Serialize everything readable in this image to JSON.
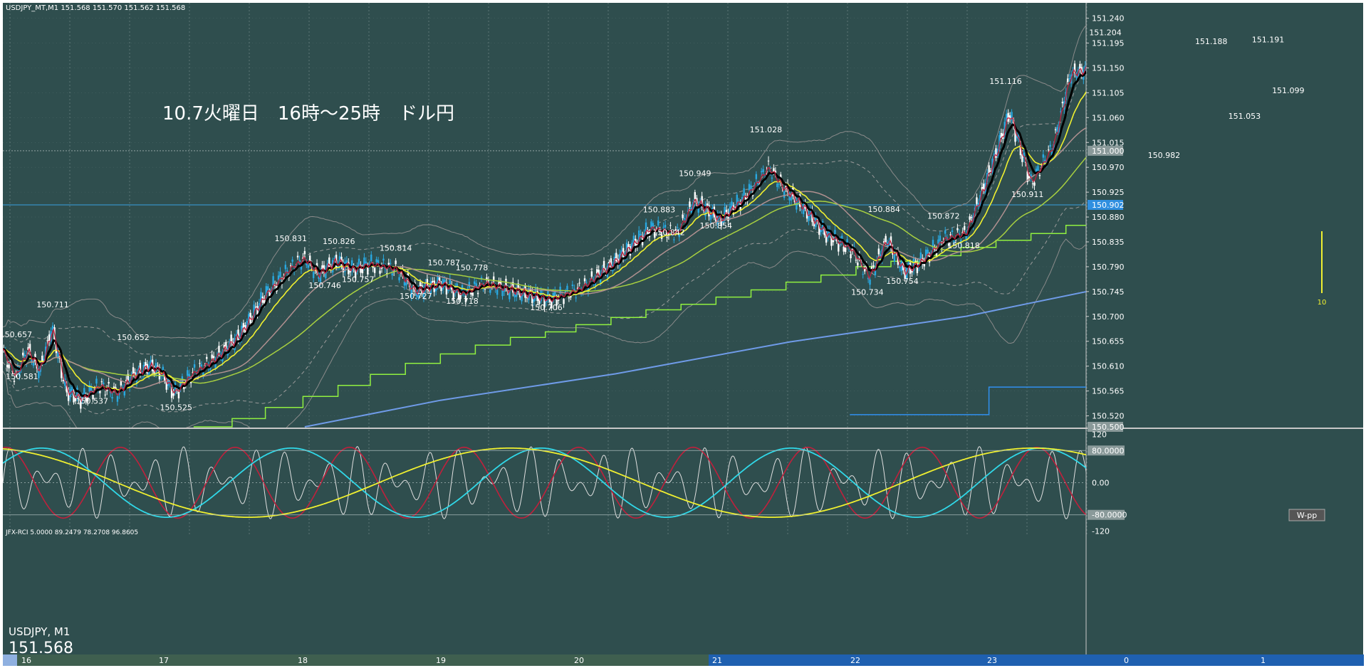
{
  "window": {
    "symbol_info": "USDJPY_MT,M1  151.568 151.570 151.562 151.568",
    "annotation": "10.7火曜日　16時～25時　ドル円",
    "wpp_label": "W-pp",
    "rci_label": "JFX-RCI 5.0000 89.2479 78.2708 96.8605",
    "symbol_tag": "USDJPY, M1",
    "last_price": "151.568",
    "marker_label": "10"
  },
  "colors": {
    "background": "#2f4e4e",
    "bull_candle": "#29a8e0",
    "bear_candle": "#ffffff",
    "ma_fast": "#c0203c",
    "ma_black": "#000000",
    "ma_yellow": "#f0f030",
    "ma_green": "#a8d040",
    "ma_brown": "#b09090",
    "ma_blue": "#6f9be8",
    "pivot_green": "#90f040",
    "pivot_blue": "#3090f0",
    "rci_white": "#e0e0e0",
    "rci_red": "#c0203c",
    "rci_cyan": "#30d8e8",
    "rci_yellow": "#f0f030"
  },
  "chart_data": {
    "type": "candlestick",
    "x_tick_labels": [
      "16",
      "17",
      "18",
      "19",
      "20",
      "21",
      "22",
      "23",
      "0",
      "1"
    ],
    "y_tick_labels": [
      "151.240",
      "151.195",
      "151.150",
      "151.105",
      "151.060",
      "151.015",
      "150.970",
      "150.925",
      "150.880",
      "150.835",
      "150.790",
      "150.745",
      "150.700",
      "150.655",
      "150.610",
      "150.565",
      "150.520"
    ],
    "ylim": [
      150.5,
      151.255
    ],
    "price_tags": [
      {
        "label": "151.000",
        "value": 151.0,
        "style": "grey"
      },
      {
        "label": "150.902",
        "value": 150.902,
        "style": "blue"
      },
      {
        "label": "150.500",
        "value": 150.5,
        "style": "grey"
      }
    ],
    "hline_value": 150.902,
    "anchors": [
      {
        "x": 0,
        "y": 150.635
      },
      {
        "x": 14,
        "y": 150.59
      },
      {
        "x": 28,
        "y": 150.64
      },
      {
        "x": 42,
        "y": 150.6
      },
      {
        "x": 56,
        "y": 150.68
      },
      {
        "x": 72,
        "y": 150.565
      },
      {
        "x": 90,
        "y": 150.55
      },
      {
        "x": 110,
        "y": 150.575
      },
      {
        "x": 130,
        "y": 150.56
      },
      {
        "x": 150,
        "y": 150.595
      },
      {
        "x": 168,
        "y": 150.61
      },
      {
        "x": 180,
        "y": 150.6
      },
      {
        "x": 196,
        "y": 150.56
      },
      {
        "x": 215,
        "y": 150.595
      },
      {
        "x": 240,
        "y": 150.62
      },
      {
        "x": 270,
        "y": 150.665
      },
      {
        "x": 300,
        "y": 150.74
      },
      {
        "x": 330,
        "y": 150.79
      },
      {
        "x": 345,
        "y": 150.805
      },
      {
        "x": 360,
        "y": 150.775
      },
      {
        "x": 380,
        "y": 150.8
      },
      {
        "x": 400,
        "y": 150.785
      },
      {
        "x": 420,
        "y": 150.795
      },
      {
        "x": 450,
        "y": 150.785
      },
      {
        "x": 470,
        "y": 150.745
      },
      {
        "x": 500,
        "y": 150.76
      },
      {
        "x": 525,
        "y": 150.74
      },
      {
        "x": 550,
        "y": 150.76
      },
      {
        "x": 600,
        "y": 150.74
      },
      {
        "x": 625,
        "y": 150.73
      },
      {
        "x": 660,
        "y": 150.75
      },
      {
        "x": 700,
        "y": 150.8
      },
      {
        "x": 740,
        "y": 150.86
      },
      {
        "x": 770,
        "y": 150.85
      },
      {
        "x": 790,
        "y": 150.91
      },
      {
        "x": 820,
        "y": 150.875
      },
      {
        "x": 850,
        "y": 150.92
      },
      {
        "x": 875,
        "y": 150.97
      },
      {
        "x": 890,
        "y": 150.935
      },
      {
        "x": 910,
        "y": 150.905
      },
      {
        "x": 940,
        "y": 150.85
      },
      {
        "x": 970,
        "y": 150.82
      },
      {
        "x": 990,
        "y": 150.77
      },
      {
        "x": 1010,
        "y": 150.84
      },
      {
        "x": 1030,
        "y": 150.78
      },
      {
        "x": 1050,
        "y": 150.8
      },
      {
        "x": 1075,
        "y": 150.84
      },
      {
        "x": 1100,
        "y": 150.85
      },
      {
        "x": 1120,
        "y": 150.93
      },
      {
        "x": 1140,
        "y": 151.02
      },
      {
        "x": 1150,
        "y": 151.07
      },
      {
        "x": 1175,
        "y": 150.94
      },
      {
        "x": 1200,
        "y": 151.01
      },
      {
        "x": 1220,
        "y": 151.14
      },
      {
        "x": 1250,
        "y": 151.15
      },
      {
        "x": 1275,
        "y": 151.165
      },
      {
        "x": 1300,
        "y": 151.14
      },
      {
        "x": 1315,
        "y": 151.05
      },
      {
        "x": 1330,
        "y": 151.0
      },
      {
        "x": 1345,
        "y": 151.06
      },
      {
        "x": 1370,
        "y": 151.15
      },
      {
        "x": 1395,
        "y": 151.14
      },
      {
        "x": 1415,
        "y": 151.07
      },
      {
        "x": 1440,
        "y": 151.13
      },
      {
        "x": 1465,
        "y": 151.1
      },
      {
        "x": 1490,
        "y": 151.16
      },
      {
        "x": 1520,
        "y": 151.22
      }
    ],
    "peaks": [
      {
        "label": "150.657",
        "x": 15,
        "value": 150.657
      },
      {
        "label": "150.581",
        "x": 22,
        "value": 150.581
      },
      {
        "label": "150.711",
        "x": 57,
        "value": 150.711
      },
      {
        "label": "150.537",
        "x": 102,
        "value": 150.537
      },
      {
        "label": "150.652",
        "x": 149,
        "value": 150.652
      },
      {
        "label": "150.525",
        "x": 198,
        "value": 150.525
      },
      {
        "label": "150.831",
        "x": 329,
        "value": 150.831
      },
      {
        "label": "150.746",
        "x": 368,
        "value": 150.746
      },
      {
        "label": "150.826",
        "x": 384,
        "value": 150.826
      },
      {
        "label": "150.757",
        "x": 406,
        "value": 150.757
      },
      {
        "label": "150.814",
        "x": 449,
        "value": 150.814
      },
      {
        "label": "150.727",
        "x": 472,
        "value": 150.727
      },
      {
        "label": "150.787",
        "x": 504,
        "value": 150.787
      },
      {
        "label": "150.778",
        "x": 536,
        "value": 150.778
      },
      {
        "label": "150.718",
        "x": 525,
        "value": 150.718
      },
      {
        "label": "150.706",
        "x": 621,
        "value": 150.706
      },
      {
        "label": "150.883",
        "x": 750,
        "value": 150.883
      },
      {
        "label": "150.842",
        "x": 761,
        "value": 150.842
      },
      {
        "label": "150.949",
        "x": 791,
        "value": 150.949
      },
      {
        "label": "150.854",
        "x": 815,
        "value": 150.854
      },
      {
        "label": "151.028",
        "x": 872,
        "value": 151.028
      },
      {
        "label": "150.884",
        "x": 1007,
        "value": 150.884
      },
      {
        "label": "150.734",
        "x": 988,
        "value": 150.734
      },
      {
        "label": "150.754",
        "x": 1028,
        "value": 150.754
      },
      {
        "label": "150.872",
        "x": 1075,
        "value": 150.872
      },
      {
        "label": "150.818",
        "x": 1098,
        "value": 150.818
      },
      {
        "label": "151.116",
        "x": 1146,
        "value": 151.116
      },
      {
        "label": "150.911",
        "x": 1171,
        "value": 150.911
      },
      {
        "label": "151.204",
        "x": 1260,
        "value": 151.204
      },
      {
        "label": "150.982",
        "x": 1327,
        "value": 150.982
      },
      {
        "label": "151.188",
        "x": 1381,
        "value": 151.188
      },
      {
        "label": "151.053",
        "x": 1419,
        "value": 151.053
      },
      {
        "label": "151.191",
        "x": 1446,
        "value": 151.191
      },
      {
        "label": "151.099",
        "x": 1469,
        "value": 151.099
      }
    ],
    "pivot_green_steps": [
      {
        "x0": 218,
        "x1": 262,
        "y": 150.5
      },
      {
        "x0": 262,
        "x1": 300,
        "y": 150.515
      },
      {
        "x0": 300,
        "x1": 343,
        "y": 150.535
      },
      {
        "x0": 343,
        "x1": 383,
        "y": 150.555
      },
      {
        "x0": 383,
        "x1": 420,
        "y": 150.575
      },
      {
        "x0": 420,
        "x1": 460,
        "y": 150.595
      },
      {
        "x0": 460,
        "x1": 500,
        "y": 150.615
      },
      {
        "x0": 500,
        "x1": 540,
        "y": 150.632
      },
      {
        "x0": 540,
        "x1": 580,
        "y": 150.648
      },
      {
        "x0": 580,
        "x1": 620,
        "y": 150.662
      },
      {
        "x0": 620,
        "x1": 655,
        "y": 150.672
      },
      {
        "x0": 655,
        "x1": 695,
        "y": 150.685
      },
      {
        "x0": 695,
        "x1": 735,
        "y": 150.698
      },
      {
        "x0": 735,
        "x1": 775,
        "y": 150.712
      },
      {
        "x0": 775,
        "x1": 815,
        "y": 150.722
      },
      {
        "x0": 815,
        "x1": 855,
        "y": 150.735
      },
      {
        "x0": 855,
        "x1": 895,
        "y": 150.748
      },
      {
        "x0": 895,
        "x1": 935,
        "y": 150.762
      },
      {
        "x0": 935,
        "x1": 975,
        "y": 150.775
      },
      {
        "x0": 975,
        "x1": 1015,
        "y": 150.79
      },
      {
        "x0": 1015,
        "x1": 1055,
        "y": 150.8
      },
      {
        "x0": 1055,
        "x1": 1095,
        "y": 150.81
      },
      {
        "x0": 1095,
        "x1": 1135,
        "y": 150.825
      },
      {
        "x0": 1135,
        "x1": 1175,
        "y": 150.838
      },
      {
        "x0": 1175,
        "x1": 1215,
        "y": 150.85
      },
      {
        "x0": 1215,
        "x1": 1245,
        "y": 150.865
      },
      {
        "x0": 1245,
        "x1": 1285,
        "y": 150.88
      },
      {
        "x0": 1285,
        "x1": 1325,
        "y": 150.898
      },
      {
        "x0": 1325,
        "x1": 1365,
        "y": 150.915
      },
      {
        "x0": 1365,
        "x1": 1405,
        "y": 150.93
      },
      {
        "x0": 1405,
        "x1": 1440,
        "y": 150.948
      },
      {
        "x0": 1440,
        "x1": 1475,
        "y": 150.962
      },
      {
        "x0": 1475,
        "x1": 1515,
        "y": 150.99
      },
      {
        "x0": 1515,
        "x1": 1525,
        "y": 151.012
      }
    ],
    "pivot_blue_steps": [
      {
        "x0": 968,
        "x1": 1127,
        "y": 150.522
      },
      {
        "x0": 1127,
        "x1": 1283,
        "y": 150.572
      },
      {
        "x0": 1283,
        "x1": 1440,
        "y": 150.619
      },
      {
        "x0": 1440,
        "x1": 1525,
        "y": 150.666
      }
    ],
    "blue_ma_line": [
      {
        "x": 345,
        "y": 150.5
      },
      {
        "x": 500,
        "y": 150.548
      },
      {
        "x": 700,
        "y": 150.596
      },
      {
        "x": 900,
        "y": 150.654
      },
      {
        "x": 1100,
        "y": 150.7
      },
      {
        "x": 1300,
        "y": 150.765
      },
      {
        "x": 1525,
        "y": 150.868
      }
    ],
    "rci_ticks": [
      {
        "label": "120",
        "value": 120
      },
      {
        "label": "80.0000",
        "value": 80
      },
      {
        "label": "0.00",
        "value": 0
      },
      {
        "label": "-80.0000",
        "value": -80
      },
      {
        "label": "-120",
        "value": -120
      }
    ]
  }
}
